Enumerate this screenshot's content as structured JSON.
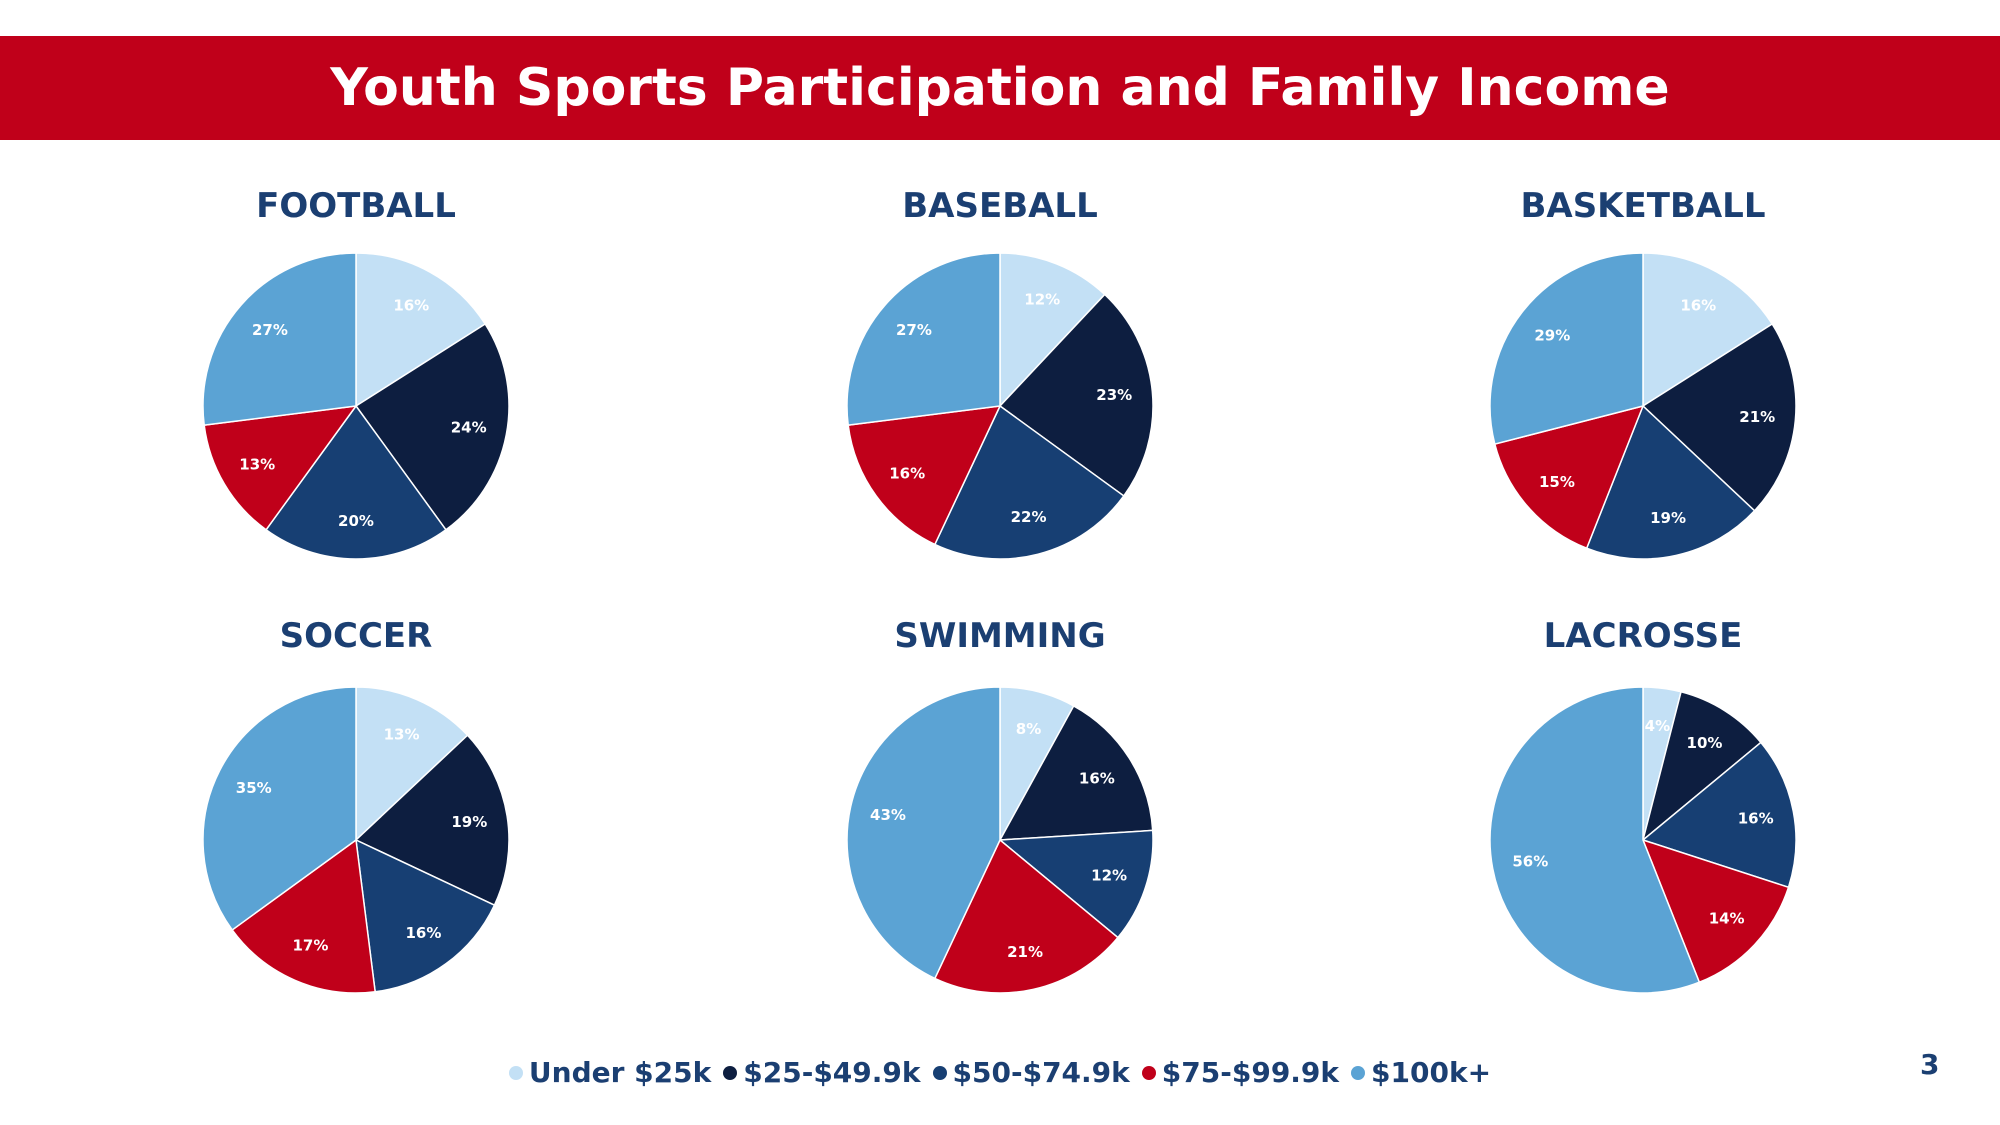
{
  "title": "Youth Sports Participation and Family Income",
  "page_number": "3",
  "colors": {
    "Under $25k": "#c3e0f5",
    "$25-$49.9k": "#0d1e40",
    "$50-$74.9k": "#173f73",
    "$75-$99.9k": "#c0001a",
    "$100k+": "#5ba3d4"
  },
  "legend": [
    {
      "label": "Under $25k",
      "color": "#c3e0f5"
    },
    {
      "label": "$25-$49.9k",
      "color": "#0d1e40"
    },
    {
      "label": "$50-$74.9k",
      "color": "#173f73"
    },
    {
      "label": "$75-$99.9k",
      "color": "#c0001a"
    },
    {
      "label": "$100k+",
      "color": "#5ba3d4"
    }
  ],
  "chart_data": [
    {
      "type": "pie",
      "title": "FOOTBALL",
      "categories": [
        "Under $25k",
        "$25-$49.9k",
        "$50-$74.9k",
        "$75-$99.9k",
        "$100k+"
      ],
      "values": [
        16,
        24,
        20,
        13,
        27
      ],
      "labels": [
        "16%",
        "24%",
        "20%",
        "13%",
        "27%"
      ]
    },
    {
      "type": "pie",
      "title": "BASEBALL",
      "categories": [
        "Under $25k",
        "$25-$49.9k",
        "$50-$74.9k",
        "$75-$99.9k",
        "$100k+"
      ],
      "values": [
        12,
        23,
        22,
        16,
        27
      ],
      "labels": [
        "12%",
        "23%",
        "22%",
        "16%",
        "27%"
      ]
    },
    {
      "type": "pie",
      "title": "BASKETBALL",
      "categories": [
        "Under $25k",
        "$25-$49.9k",
        "$50-$74.9k",
        "$75-$99.9k",
        "$100k+"
      ],
      "values": [
        16,
        21,
        19,
        15,
        29
      ],
      "labels": [
        "16%",
        "21%",
        "19%",
        "15%",
        "29%"
      ]
    },
    {
      "type": "pie",
      "title": "SOCCER",
      "categories": [
        "Under $25k",
        "$25-$49.9k",
        "$50-$74.9k",
        "$75-$99.9k",
        "$100k+"
      ],
      "values": [
        13,
        19,
        16,
        17,
        35
      ],
      "labels": [
        "13%",
        "19%",
        "16%",
        "17%",
        "35%"
      ]
    },
    {
      "type": "pie",
      "title": "SWIMMING",
      "categories": [
        "Under $25k",
        "$25-$49.9k",
        "$50-$74.9k",
        "$75-$99.9k",
        "$100k+"
      ],
      "values": [
        8,
        16,
        12,
        21,
        43
      ],
      "labels": [
        "8%",
        "16%",
        "12%",
        "21%",
        "43%"
      ]
    },
    {
      "type": "pie",
      "title": "LACROSSE",
      "categories": [
        "Under $25k",
        "$25-$49.9k",
        "$50-$74.9k",
        "$75-$99.9k",
        "$100k+"
      ],
      "values": [
        4,
        10,
        16,
        14,
        56
      ],
      "labels": [
        "4%",
        "10%",
        "16%",
        "14%",
        "56%"
      ]
    }
  ]
}
